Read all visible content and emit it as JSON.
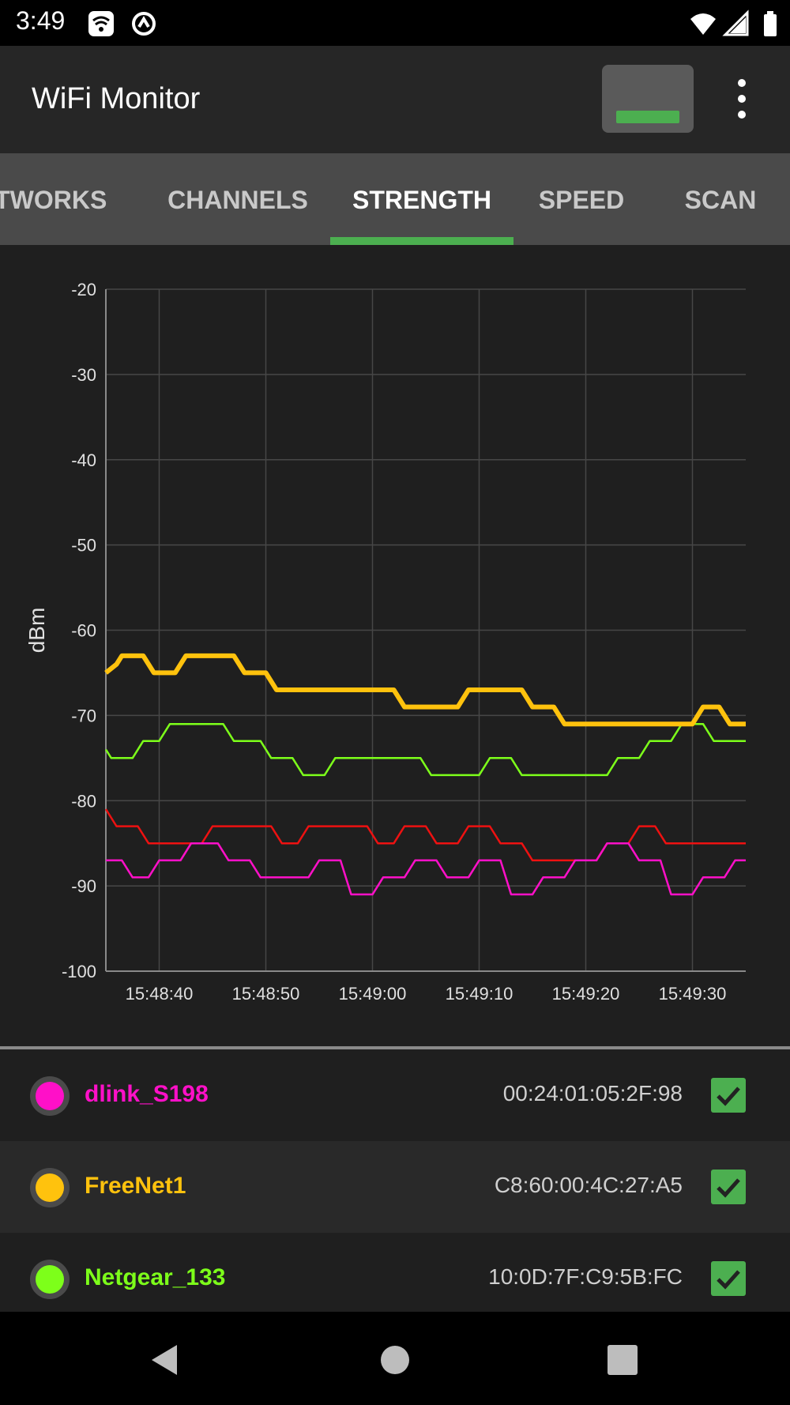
{
  "status_bar": {
    "time": "3:49",
    "icons": [
      "wifi-settings-icon",
      "data-saver-icon",
      "wifi-signal-icon",
      "cell-signal-icon",
      "battery-icon"
    ]
  },
  "app_bar": {
    "title": "WiFi Monitor",
    "screen_button_icon": "screen-toggle-icon",
    "overflow_icon": "more-vert-icon"
  },
  "tabs": [
    {
      "label": "NETWORKS",
      "active": false
    },
    {
      "label": "CHANNELS",
      "active": false
    },
    {
      "label": "STRENGTH",
      "active": true
    },
    {
      "label": "SPEED",
      "active": false
    },
    {
      "label": "SCAN",
      "active": false
    }
  ],
  "colors": {
    "accent": "#4caf50",
    "dlink": "#ff10c8",
    "freenet": "#ffc20d",
    "netgear": "#7dff1a",
    "red_series": "#ee1111"
  },
  "chart_data": {
    "type": "line",
    "ylabel": "dBm",
    "xlabel": "",
    "ylim": [
      -100,
      -20
    ],
    "yticks": [
      "-20",
      "-30",
      "-40",
      "-50",
      "-60",
      "-70",
      "-80",
      "-90",
      "-100"
    ],
    "xticks": [
      "15:48:40",
      "15:48:50",
      "15:49:00",
      "15:49:10",
      "15:49:20",
      "15:49:30"
    ],
    "x_unit": "seconds after 15:48:35",
    "xlim": [
      0,
      60
    ],
    "grid": true,
    "series": [
      {
        "name": "FreeNet1",
        "color": "#ffc20d",
        "bold": true,
        "points": [
          [
            0,
            -65
          ],
          [
            1,
            -64
          ],
          [
            1.5,
            -63
          ],
          [
            3.5,
            -63
          ],
          [
            4.5,
            -65
          ],
          [
            6.5,
            -65
          ],
          [
            7.5,
            -63
          ],
          [
            12,
            -63
          ],
          [
            13,
            -65
          ],
          [
            15,
            -65
          ],
          [
            16,
            -67
          ],
          [
            27,
            -67
          ],
          [
            28,
            -69
          ],
          [
            33,
            -69
          ],
          [
            34,
            -67
          ],
          [
            39,
            -67
          ],
          [
            40,
            -69
          ],
          [
            42,
            -69
          ],
          [
            43,
            -71
          ],
          [
            55,
            -71
          ],
          [
            56,
            -69
          ],
          [
            57.5,
            -69
          ],
          [
            58.5,
            -71
          ],
          [
            60,
            -71
          ]
        ]
      },
      {
        "name": "Netgear_133",
        "color": "#7dff1a",
        "bold": false,
        "points": [
          [
            0,
            -74
          ],
          [
            0.5,
            -75
          ],
          [
            2.5,
            -75
          ],
          [
            3.5,
            -73
          ],
          [
            5,
            -73
          ],
          [
            6,
            -71
          ],
          [
            11,
            -71
          ],
          [
            12,
            -73
          ],
          [
            14.5,
            -73
          ],
          [
            15.5,
            -75
          ],
          [
            17.5,
            -75
          ],
          [
            18.5,
            -77
          ],
          [
            20.5,
            -77
          ],
          [
            21.5,
            -75
          ],
          [
            29.5,
            -75
          ],
          [
            30.5,
            -77
          ],
          [
            35,
            -77
          ],
          [
            36,
            -75
          ],
          [
            38,
            -75
          ],
          [
            39,
            -77
          ],
          [
            47,
            -77
          ],
          [
            48,
            -75
          ],
          [
            50,
            -75
          ],
          [
            51,
            -73
          ],
          [
            53,
            -73
          ],
          [
            54,
            -71
          ],
          [
            56,
            -71
          ],
          [
            57,
            -73
          ],
          [
            60,
            -73
          ]
        ]
      },
      {
        "name": "",
        "color": "#ee1111",
        "bold": false,
        "points": [
          [
            0,
            -81
          ],
          [
            1,
            -83
          ],
          [
            3,
            -83
          ],
          [
            4,
            -85
          ],
          [
            9,
            -85
          ],
          [
            10,
            -83
          ],
          [
            15.5,
            -83
          ],
          [
            16.5,
            -85
          ],
          [
            18,
            -85
          ],
          [
            19,
            -83
          ],
          [
            24.5,
            -83
          ],
          [
            25.5,
            -85
          ],
          [
            27,
            -85
          ],
          [
            28,
            -83
          ],
          [
            30,
            -83
          ],
          [
            31,
            -85
          ],
          [
            33,
            -85
          ],
          [
            34,
            -83
          ],
          [
            36,
            -83
          ],
          [
            37,
            -85
          ],
          [
            39,
            -85
          ],
          [
            40,
            -87
          ],
          [
            46,
            -87
          ],
          [
            47,
            -85
          ],
          [
            49,
            -85
          ],
          [
            50,
            -83
          ],
          [
            51.5,
            -83
          ],
          [
            52.5,
            -85
          ],
          [
            60,
            -85
          ]
        ]
      },
      {
        "name": "dlink_S198",
        "color": "#ff10c8",
        "bold": false,
        "points": [
          [
            0,
            -87
          ],
          [
            1.5,
            -87
          ],
          [
            2.5,
            -89
          ],
          [
            4,
            -89
          ],
          [
            5,
            -87
          ],
          [
            7,
            -87
          ],
          [
            8,
            -85
          ],
          [
            10.5,
            -85
          ],
          [
            11.5,
            -87
          ],
          [
            13.5,
            -87
          ],
          [
            14.5,
            -89
          ],
          [
            19,
            -89
          ],
          [
            20,
            -87
          ],
          [
            22,
            -87
          ],
          [
            23,
            -91
          ],
          [
            25,
            -91
          ],
          [
            26,
            -89
          ],
          [
            28,
            -89
          ],
          [
            29,
            -87
          ],
          [
            31,
            -87
          ],
          [
            32,
            -89
          ],
          [
            34,
            -89
          ],
          [
            35,
            -87
          ],
          [
            37,
            -87
          ],
          [
            38,
            -91
          ],
          [
            40,
            -91
          ],
          [
            41,
            -89
          ],
          [
            43,
            -89
          ],
          [
            44,
            -87
          ],
          [
            46,
            -87
          ],
          [
            47,
            -85
          ],
          [
            49,
            -85
          ],
          [
            50,
            -87
          ],
          [
            52,
            -87
          ],
          [
            53,
            -91
          ],
          [
            55,
            -91
          ],
          [
            56,
            -89
          ],
          [
            58,
            -89
          ],
          [
            59,
            -87
          ],
          [
            60,
            -87
          ]
        ]
      }
    ]
  },
  "networks": [
    {
      "name": "dlink_S198",
      "mac": "00:24:01:05:2F:98",
      "color": "#ff10c8",
      "checked": true
    },
    {
      "name": "FreeNet1",
      "mac": "C8:60:00:4C:27:A5",
      "color": "#ffc20d",
      "checked": true
    },
    {
      "name": "Netgear_133",
      "mac": "10:0D:7F:C9:5B:FC",
      "color": "#7dff1a",
      "checked": true
    }
  ],
  "nav_bar": {
    "back_icon": "back-icon",
    "home_icon": "home-icon",
    "recents_icon": "recents-icon"
  }
}
